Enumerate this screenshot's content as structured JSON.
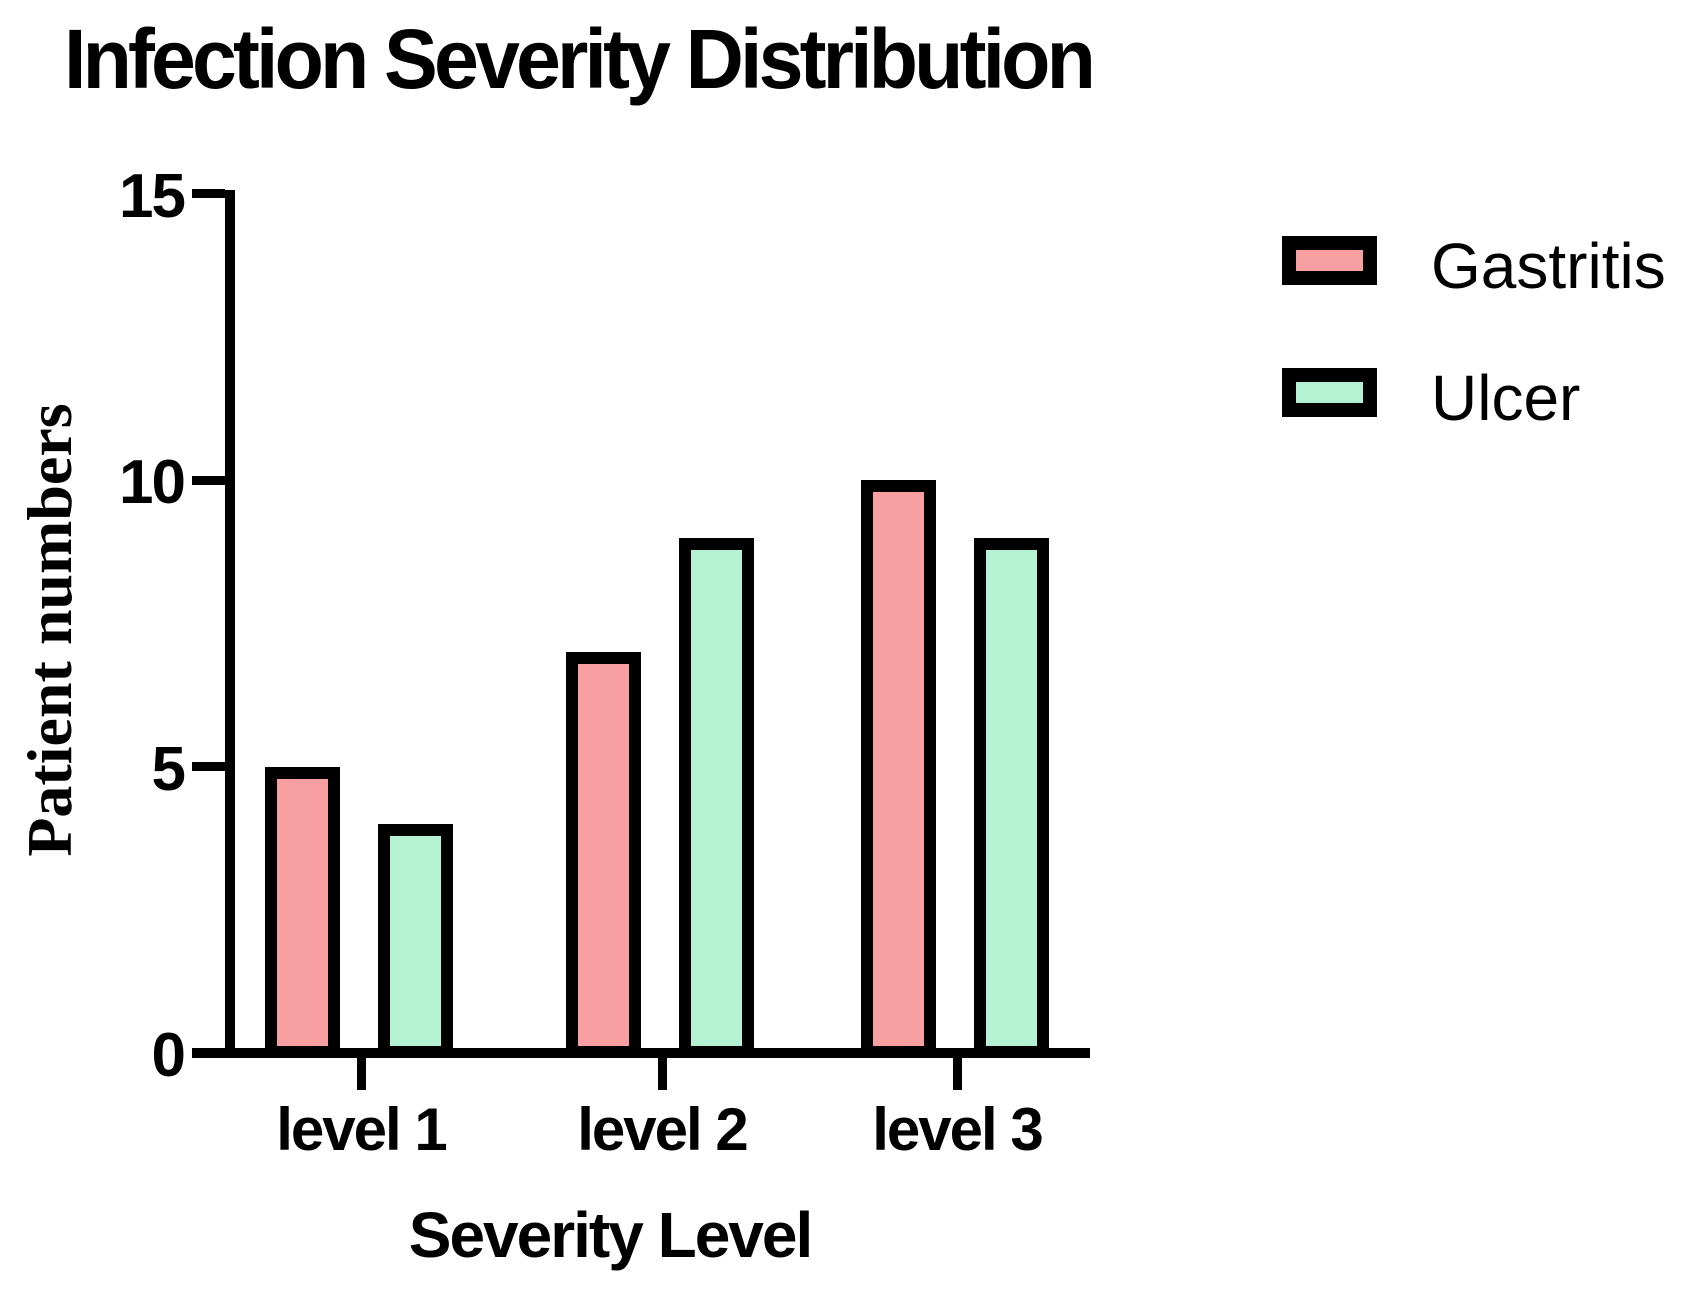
{
  "chart_data": {
    "type": "bar",
    "title": "Infection Severity Distribution",
    "xlabel": "Severity Level",
    "ylabel": "Patient numbers",
    "categories": [
      "level 1",
      "level 2",
      "level 3"
    ],
    "series": [
      {
        "name": "Gastritis",
        "color": "#F89FA1",
        "values": [
          5,
          7,
          10
        ]
      },
      {
        "name": "Ulcer",
        "color": "#B5F1D3",
        "values": [
          4,
          9,
          9
        ]
      }
    ],
    "ylim": [
      0,
      15
    ],
    "yticks": [
      0,
      5,
      10,
      15
    ],
    "grid": false,
    "legend_position": "right",
    "bar_border_color": "#000000",
    "axis_color": "#000000",
    "background_color": "#FFFFFF"
  }
}
